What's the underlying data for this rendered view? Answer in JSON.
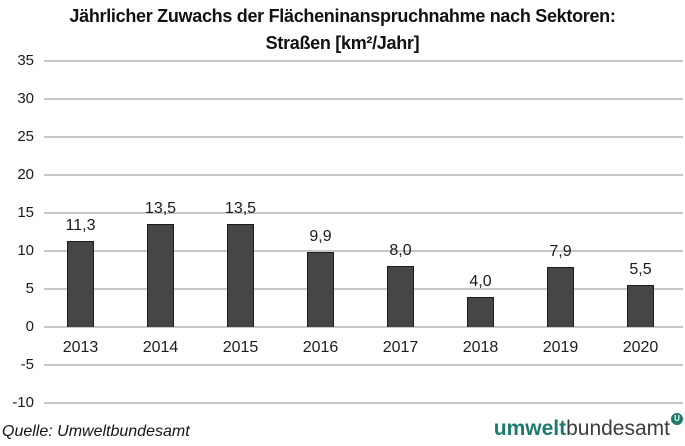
{
  "title": {
    "line1": "Jährlicher Zuwachs der Flächeninanspruchnahme nach Sektoren:",
    "line2": "Straßen [km²/Jahr]"
  },
  "chart_data": {
    "type": "bar",
    "categories": [
      "2013",
      "2014",
      "2015",
      "2016",
      "2017",
      "2018",
      "2019",
      "2020"
    ],
    "values": [
      11.3,
      13.5,
      13.5,
      9.9,
      8.0,
      4.0,
      7.9,
      5.5
    ],
    "value_labels": [
      "11,3",
      "13,5",
      "13,5",
      "9,9",
      "8,0",
      "4,0",
      "7,9",
      "5,5"
    ],
    "title": "Jährlicher Zuwachs der Flächeninanspruchnahme nach Sektoren: Straßen [km²/Jahr]",
    "xlabel": "",
    "ylabel": "",
    "ylim": [
      -10,
      35
    ],
    "ytick_step": 5,
    "grid": "horizontal",
    "legend": "none",
    "colors": {
      "bar_fill": "#464646",
      "bar_border": "#1c1c1c",
      "gridline": "#c8c8c8",
      "text": "#1a1a1a"
    }
  },
  "footer": {
    "source": "Quelle: Umweltbundesamt",
    "logo_bold": "umwelt",
    "logo_rest": "bundesamt",
    "logo_mark": "U",
    "logo_green": "#1d7b6a",
    "logo_gray": "#3c3c3c"
  }
}
